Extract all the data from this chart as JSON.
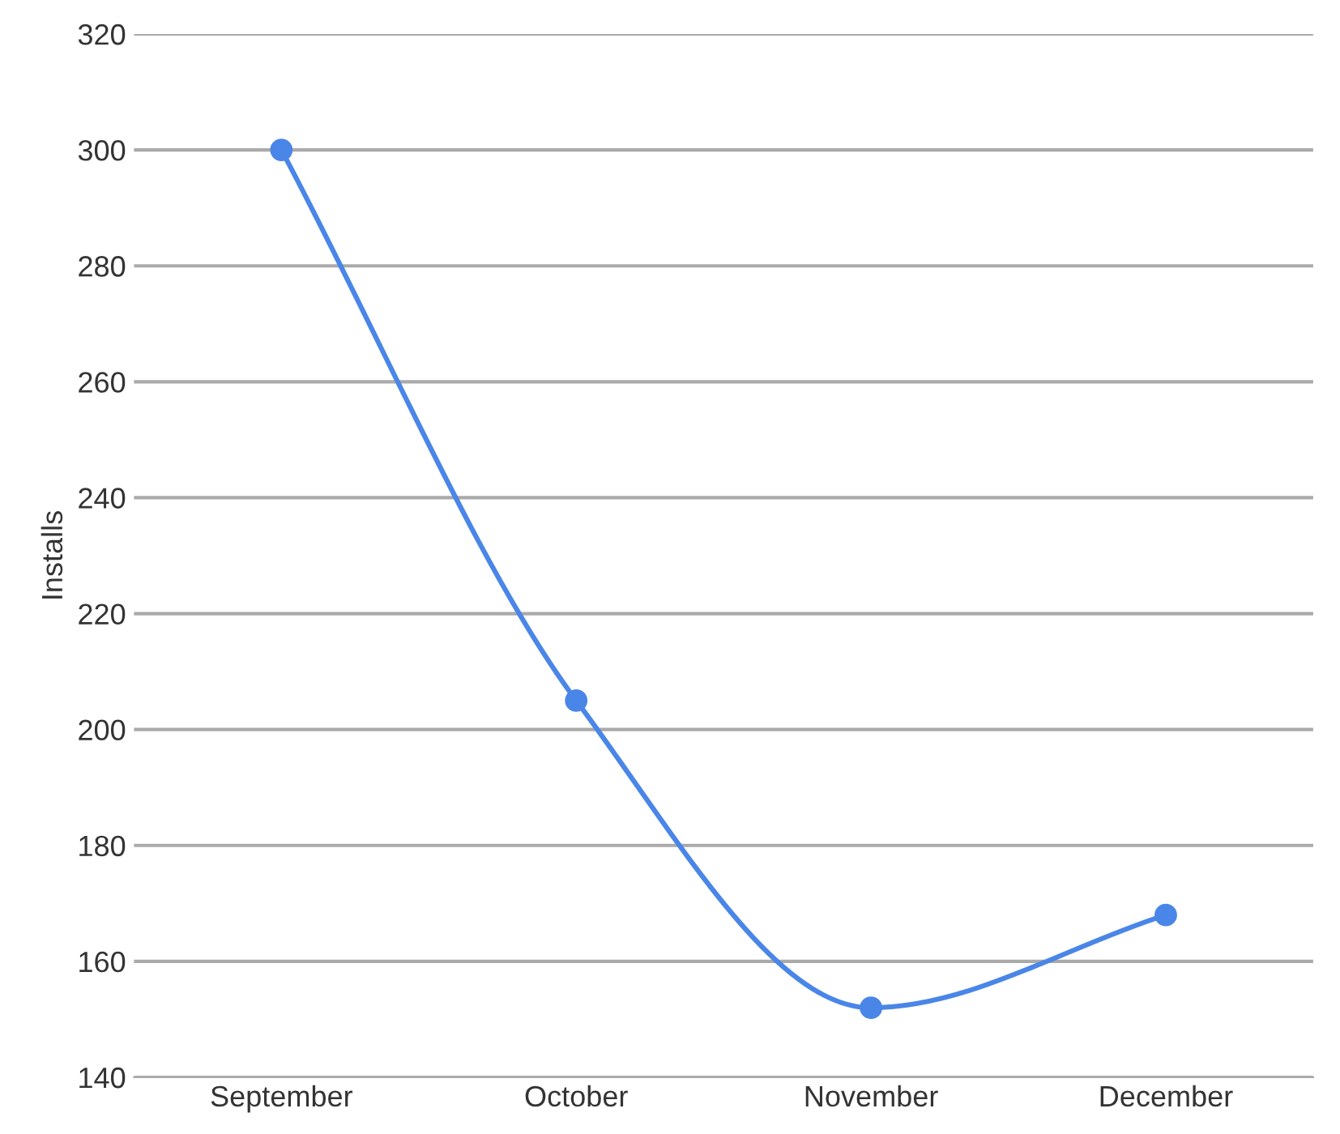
{
  "chart_data": {
    "type": "line",
    "ylabel": "Installs",
    "categories": [
      "September",
      "October",
      "November",
      "December"
    ],
    "series": [
      {
        "color": "#4a86e8",
        "values": [
          300,
          205,
          152,
          168
        ]
      }
    ],
    "ylim": [
      140,
      320
    ],
    "yticks": [
      140,
      160,
      180,
      200,
      220,
      240,
      260,
      280,
      300,
      320
    ],
    "grid": "y",
    "marker": "circle",
    "line_style": "solid"
  }
}
